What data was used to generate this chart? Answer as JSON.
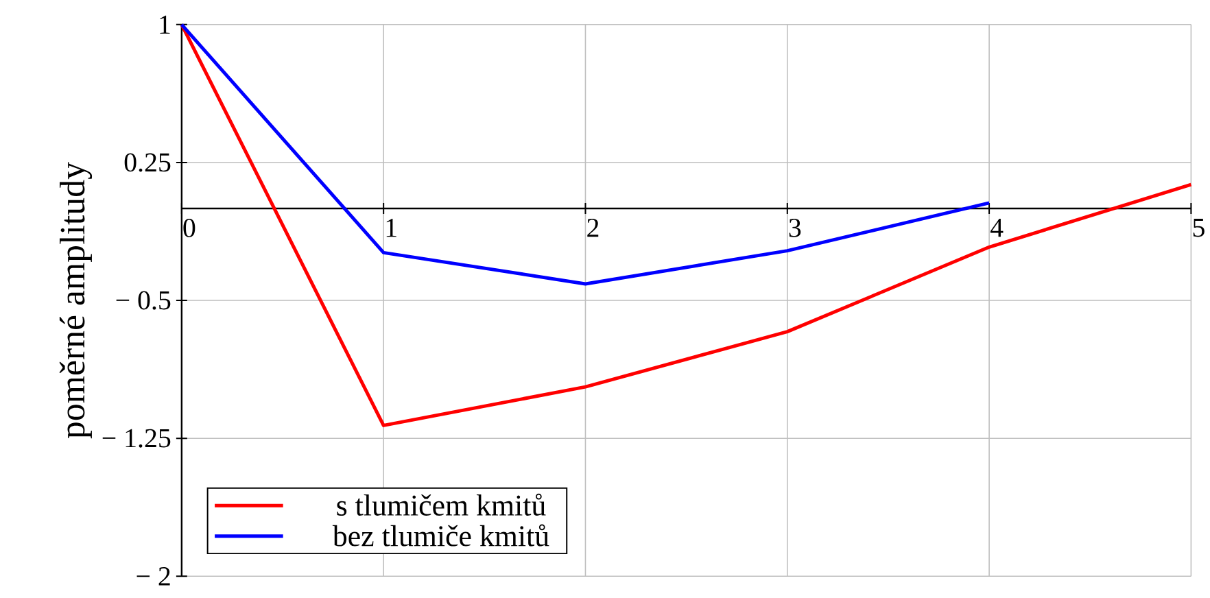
{
  "chart_data": {
    "type": "line",
    "ylabel": "poměrné amplitudy",
    "x": [
      0,
      1,
      2,
      3,
      4,
      5
    ],
    "xlim": [
      0,
      5
    ],
    "xticks": [
      0,
      1,
      2,
      3,
      4,
      5
    ],
    "ylim": [
      -2,
      1
    ],
    "yticks": [
      {
        "value": -2,
        "label": "− 2"
      },
      {
        "value": -1.25,
        "label": "− 1.25"
      },
      {
        "value": -0.5,
        "label": "− 0.5"
      },
      0.25,
      1
    ],
    "grid": true,
    "legend": "bottom left",
    "line_style": "solid",
    "marker": "none",
    "series": [
      {
        "name": "s tlumičem kmitů",
        "color": "#ff0000",
        "values": [
          1,
          -1.18,
          -0.97,
          -0.67,
          -0.21,
          0.13
        ]
      },
      {
        "name": "bez tlumiče kmitů",
        "color": "#0000ff",
        "x": [
          0,
          1,
          2,
          3,
          4
        ],
        "values": [
          1,
          -0.24,
          -0.41,
          -0.23,
          0.03
        ]
      }
    ]
  }
}
